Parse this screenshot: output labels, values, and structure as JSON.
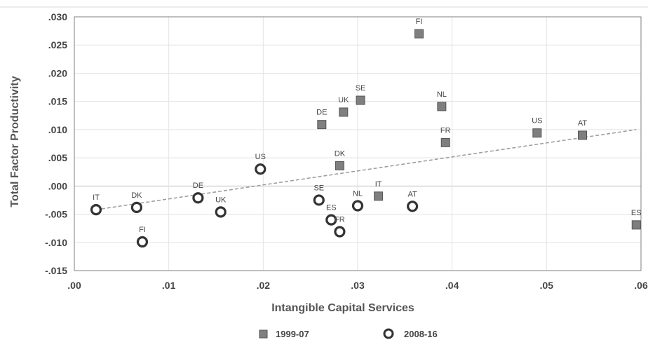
{
  "chart_data": {
    "type": "scatter",
    "title": "",
    "xlabel": "Intangible Capital Services",
    "ylabel": "Total Factor Productivity",
    "xlim": [
      0,
      0.06
    ],
    "ylim": [
      -0.015,
      0.03
    ],
    "x_ticks": [
      ".00",
      ".01",
      ".02",
      ".03",
      ".04",
      ".05",
      ".06"
    ],
    "y_ticks": [
      ".030",
      ".025",
      ".020",
      ".015",
      ".010",
      ".005",
      ".000",
      "-.005",
      "-.010",
      "-.015"
    ],
    "grid": true,
    "legend_position": "bottom",
    "series": [
      {
        "name": "1999-07",
        "marker": "filled-square",
        "color": "#7f7f7f",
        "points": [
          {
            "label": "FI",
            "x": 0.0365,
            "y": 0.027
          },
          {
            "label": "SE",
            "x": 0.0303,
            "y": 0.0152
          },
          {
            "label": "NL",
            "x": 0.0389,
            "y": 0.0141
          },
          {
            "label": "UK",
            "x": 0.0285,
            "y": 0.0131
          },
          {
            "label": "DE",
            "x": 0.0262,
            "y": 0.0109
          },
          {
            "label": "US",
            "x": 0.049,
            "y": 0.0094
          },
          {
            "label": "AT",
            "x": 0.0538,
            "y": 0.009
          },
          {
            "label": "FR",
            "x": 0.0393,
            "y": 0.0077
          },
          {
            "label": "DK",
            "x": 0.0281,
            "y": 0.0036
          },
          {
            "label": "IT",
            "x": 0.0322,
            "y": -0.0018
          },
          {
            "label": "ES",
            "x": 0.0595,
            "y": -0.0069
          }
        ]
      },
      {
        "name": "2008-16",
        "marker": "open-circle",
        "color": "#333333",
        "points": [
          {
            "label": "US",
            "x": 0.0197,
            "y": 0.003
          },
          {
            "label": "IT",
            "x": 0.0023,
            "y": -0.0042
          },
          {
            "label": "DK",
            "x": 0.0066,
            "y": -0.0038
          },
          {
            "label": "DE",
            "x": 0.0131,
            "y": -0.0021
          },
          {
            "label": "UK",
            "x": 0.0155,
            "y": -0.0046
          },
          {
            "label": "SE",
            "x": 0.0259,
            "y": -0.0025
          },
          {
            "label": "ES",
            "x": 0.0272,
            "y": -0.006
          },
          {
            "label": "FR",
            "x": 0.0281,
            "y": -0.0081
          },
          {
            "label": "NL",
            "x": 0.03,
            "y": -0.0035
          },
          {
            "label": "AT",
            "x": 0.0358,
            "y": -0.0036
          },
          {
            "label": "FI",
            "x": 0.0072,
            "y": -0.0099
          }
        ]
      }
    ],
    "trendline": {
      "style": "dashed",
      "color": "#999999",
      "from": [
        0.0023,
        -0.0042
      ],
      "to": [
        0.0595,
        0.01
      ]
    }
  }
}
